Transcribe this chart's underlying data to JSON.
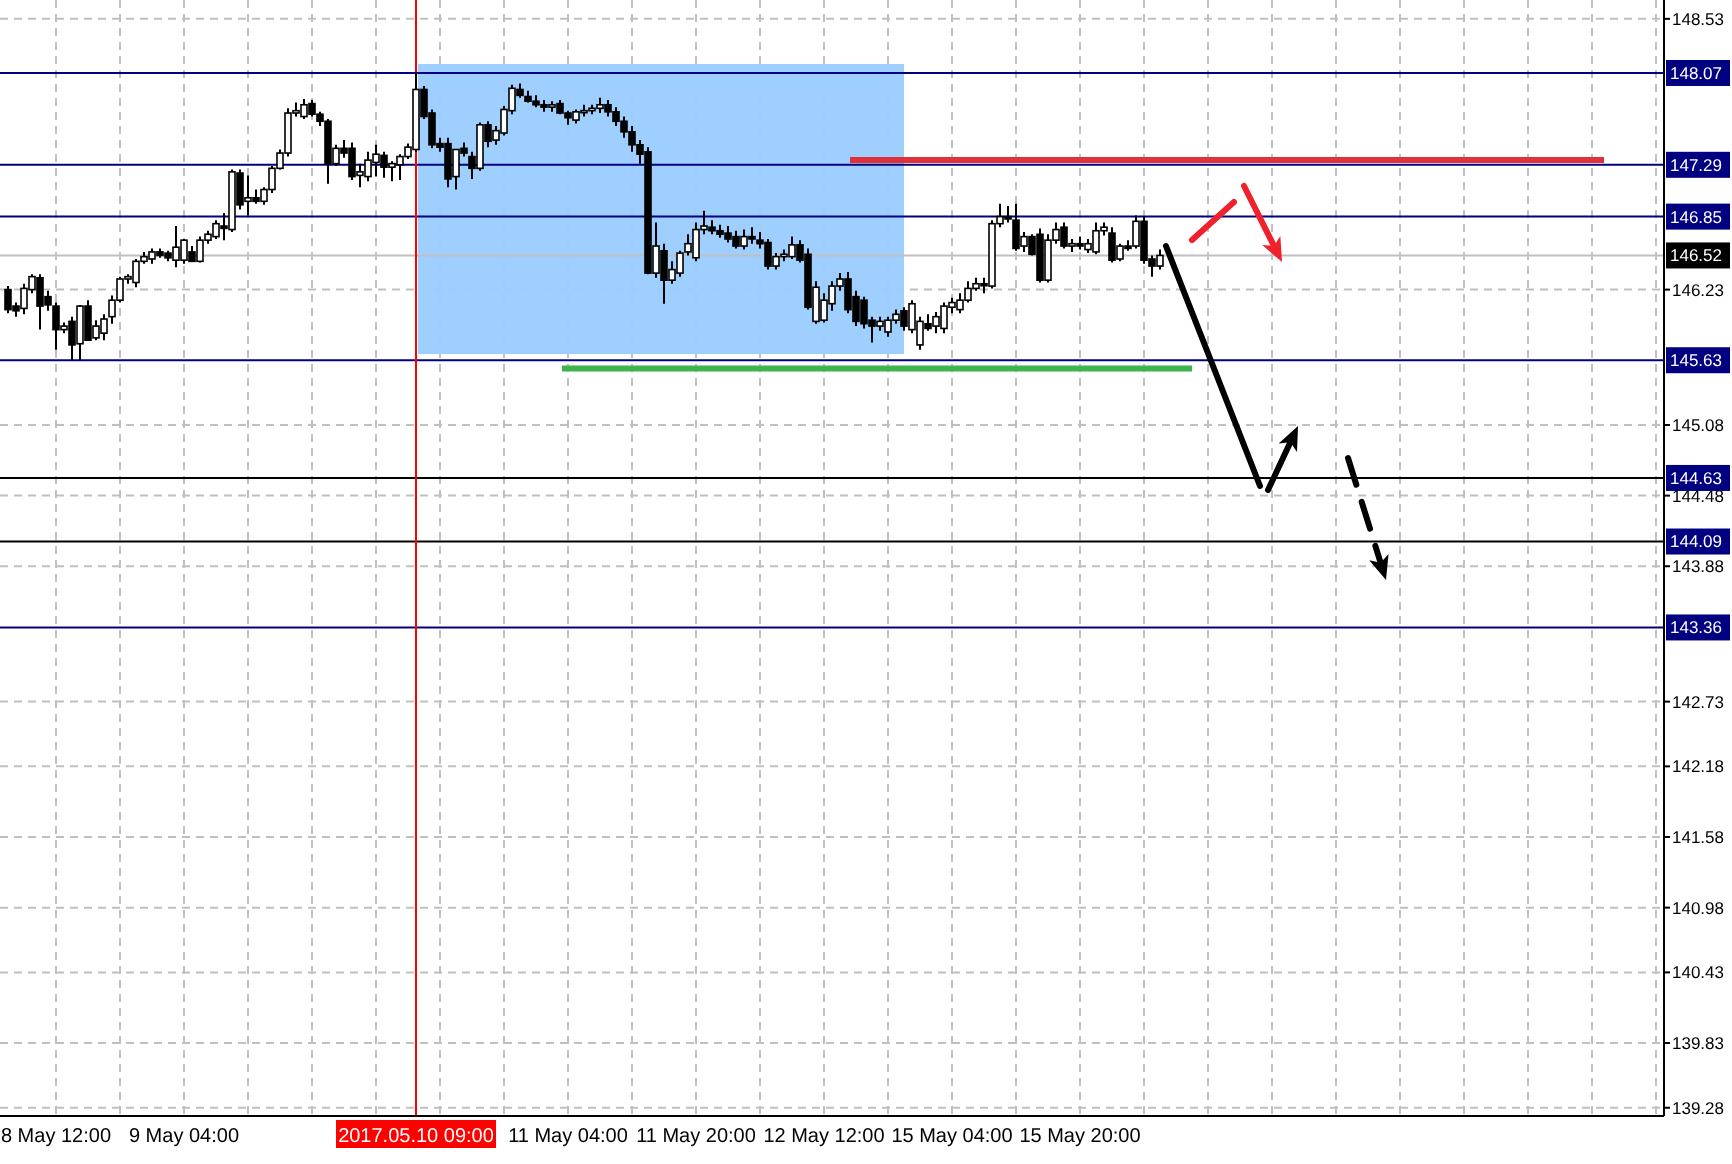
{
  "chart_data": {
    "type": "candlestick",
    "categories": [
      null,
      null,
      null,
      null,
      null,
      null,
      "8 May 12:00",
      null,
      null,
      null,
      null,
      null,
      null,
      null,
      null,
      null,
      null,
      null,
      null,
      null,
      null,
      null,
      "9 May 04:00",
      null,
      null,
      null,
      null,
      null,
      null,
      null,
      null,
      null,
      null,
      null,
      null,
      null,
      null,
      null,
      null,
      null,
      null,
      null,
      null,
      null,
      null,
      null,
      null,
      null,
      null,
      null,
      null,
      "2017.05.10 09:00",
      null,
      null,
      null,
      null,
      null,
      null,
      null,
      null,
      null,
      null,
      null,
      null,
      null,
      null,
      null,
      null,
      null,
      null,
      "11 May 04:00",
      null,
      null,
      null,
      null,
      null,
      null,
      null,
      null,
      null,
      null,
      null,
      null,
      null,
      null,
      null,
      "11 May 20:00",
      null,
      null,
      null,
      null,
      null,
      null,
      null,
      null,
      null,
      null,
      null,
      null,
      null,
      null,
      null,
      "12 May 12:00",
      null,
      null,
      null,
      null,
      null,
      null,
      null,
      null,
      null,
      null,
      null,
      null,
      null,
      null,
      null,
      "15 May 04:00",
      null,
      null,
      null,
      null,
      null,
      null,
      null,
      null,
      null,
      null,
      null,
      null,
      null,
      null,
      null,
      "15 May 20:00",
      null,
      null,
      null,
      null,
      null,
      null,
      null,
      null,
      null,
      null,
      null,
      null,
      null,
      null,
      null,
      null,
      null,
      null,
      null,
      null,
      null,
      null,
      null,
      null,
      null,
      null,
      null,
      null,
      null,
      null,
      null,
      null,
      null,
      null,
      null,
      null,
      null,
      null,
      null,
      null,
      null,
      null,
      null,
      null,
      null,
      null,
      null,
      null,
      null,
      null,
      null,
      null,
      null,
      null,
      null,
      null,
      null,
      null,
      null,
      null,
      null,
      null,
      null,
      null,
      null,
      null,
      null,
      null,
      null,
      null,
      null,
      null,
      null
    ],
    "ohlc": [
      [
        146.23,
        146.26,
        146.03,
        146.06
      ],
      [
        146.09,
        146.12,
        146.0,
        146.05
      ],
      [
        146.07,
        146.28,
        146.02,
        146.24
      ],
      [
        146.23,
        146.36,
        146.2,
        146.34
      ],
      [
        146.33,
        146.36,
        145.89,
        146.09
      ],
      [
        146.17,
        146.22,
        146.05,
        146.1
      ],
      [
        146.09,
        146.12,
        145.72,
        145.89
      ],
      [
        145.89,
        145.95,
        145.86,
        145.92
      ],
      [
        145.96,
        146.0,
        145.63,
        145.76
      ],
      [
        145.77,
        146.1,
        145.63,
        146.09
      ],
      [
        146.09,
        146.14,
        145.8,
        145.8
      ],
      [
        145.82,
        145.97,
        145.8,
        145.92
      ],
      [
        145.86,
        146.02,
        145.8,
        145.98
      ],
      [
        146.0,
        146.18,
        145.94,
        146.14
      ],
      [
        146.14,
        146.34,
        146.12,
        146.32
      ],
      [
        146.32,
        146.36,
        146.28,
        146.34
      ],
      [
        146.29,
        146.49,
        146.25,
        146.47
      ],
      [
        146.47,
        146.55,
        146.45,
        146.51
      ],
      [
        146.49,
        146.58,
        146.45,
        146.55
      ],
      [
        146.55,
        146.58,
        146.5,
        146.52
      ],
      [
        146.54,
        146.56,
        146.47,
        146.5
      ],
      [
        146.48,
        146.77,
        146.42,
        146.59
      ],
      [
        146.48,
        146.66,
        146.45,
        146.65
      ],
      [
        146.55,
        146.6,
        146.47,
        146.47
      ],
      [
        146.47,
        146.68,
        146.46,
        146.65
      ],
      [
        146.65,
        146.73,
        146.62,
        146.7
      ],
      [
        146.68,
        146.82,
        146.66,
        146.79
      ],
      [
        146.77,
        146.88,
        146.65,
        146.75
      ],
      [
        146.74,
        147.25,
        146.72,
        147.23
      ],
      [
        147.22,
        147.25,
        146.91,
        146.95
      ],
      [
        146.98,
        147.2,
        146.86,
        147.01
      ],
      [
        147.01,
        147.08,
        146.96,
        146.98
      ],
      [
        146.98,
        147.1,
        146.95,
        147.08
      ],
      [
        147.08,
        147.28,
        147.05,
        147.26
      ],
      [
        147.26,
        147.42,
        147.25,
        147.39
      ],
      [
        147.39,
        147.77,
        147.36,
        147.73
      ],
      [
        147.73,
        147.82,
        147.7,
        147.75
      ],
      [
        147.7,
        147.85,
        147.68,
        147.8
      ],
      [
        147.81,
        147.84,
        147.7,
        147.72
      ],
      [
        147.72,
        147.74,
        147.62,
        147.66
      ],
      [
        147.66,
        147.68,
        147.13,
        147.3
      ],
      [
        147.3,
        147.46,
        147.28,
        147.43
      ],
      [
        147.43,
        147.5,
        147.35,
        147.39
      ],
      [
        147.43,
        147.48,
        147.16,
        147.19
      ],
      [
        147.2,
        147.3,
        147.1,
        147.23
      ],
      [
        147.19,
        147.4,
        147.15,
        147.33
      ],
      [
        147.31,
        147.46,
        147.19,
        147.38
      ],
      [
        147.37,
        147.4,
        147.18,
        147.27
      ],
      [
        147.27,
        147.32,
        147.15,
        147.3
      ],
      [
        147.29,
        147.38,
        147.16,
        147.36
      ],
      [
        147.36,
        147.47,
        147.34,
        147.44
      ],
      [
        147.42,
        148.08,
        147.4,
        147.93
      ],
      [
        147.93,
        147.96,
        147.68,
        147.7
      ],
      [
        147.73,
        147.76,
        147.43,
        147.46
      ],
      [
        147.47,
        147.52,
        147.4,
        147.44
      ],
      [
        147.47,
        147.52,
        147.1,
        147.17
      ],
      [
        147.19,
        147.42,
        147.08,
        147.42
      ],
      [
        147.43,
        147.48,
        147.36,
        147.39
      ],
      [
        147.36,
        147.4,
        147.17,
        147.26
      ],
      [
        147.26,
        147.65,
        147.24,
        147.63
      ],
      [
        147.63,
        147.66,
        147.44,
        147.49
      ],
      [
        147.5,
        147.62,
        147.46,
        147.58
      ],
      [
        147.56,
        147.79,
        147.54,
        147.76
      ],
      [
        147.75,
        147.97,
        147.72,
        147.94
      ],
      [
        147.93,
        147.98,
        147.86,
        147.88
      ],
      [
        147.87,
        147.92,
        147.82,
        147.83
      ],
      [
        147.83,
        147.88,
        147.78,
        147.8
      ],
      [
        147.8,
        147.84,
        147.74,
        147.78
      ],
      [
        147.78,
        147.83,
        147.74,
        147.8
      ],
      [
        147.81,
        147.84,
        147.72,
        147.73
      ],
      [
        147.73,
        147.75,
        147.63,
        147.69
      ],
      [
        147.67,
        147.76,
        147.64,
        147.74
      ],
      [
        147.74,
        147.8,
        147.7,
        147.75
      ],
      [
        147.75,
        147.8,
        147.72,
        147.77
      ],
      [
        147.77,
        147.86,
        147.73,
        147.8
      ],
      [
        147.8,
        147.84,
        147.7,
        147.74
      ],
      [
        147.74,
        147.78,
        147.62,
        147.66
      ],
      [
        147.66,
        147.7,
        147.52,
        147.57
      ],
      [
        147.57,
        147.62,
        147.4,
        147.46
      ],
      [
        147.46,
        147.5,
        147.3,
        147.38
      ],
      [
        147.4,
        147.44,
        146.36,
        146.37
      ],
      [
        146.37,
        146.8,
        146.33,
        146.6
      ],
      [
        146.56,
        146.62,
        146.11,
        146.31
      ],
      [
        146.31,
        146.47,
        146.28,
        146.4
      ],
      [
        146.37,
        146.56,
        146.34,
        146.54
      ],
      [
        146.55,
        146.7,
        146.52,
        146.62
      ],
      [
        146.5,
        146.8,
        146.47,
        146.74
      ],
      [
        146.74,
        146.9,
        146.7,
        146.77
      ],
      [
        146.76,
        146.82,
        146.7,
        146.73
      ],
      [
        146.73,
        146.78,
        146.67,
        146.7
      ],
      [
        146.71,
        146.77,
        146.63,
        146.66
      ],
      [
        146.68,
        146.73,
        146.58,
        146.6
      ],
      [
        146.6,
        146.74,
        146.57,
        146.68
      ],
      [
        146.68,
        146.76,
        146.62,
        146.66
      ],
      [
        146.65,
        146.72,
        146.58,
        146.62
      ],
      [
        146.63,
        146.66,
        146.4,
        146.43
      ],
      [
        146.43,
        146.54,
        146.4,
        146.51
      ],
      [
        146.51,
        146.57,
        146.47,
        146.53
      ],
      [
        146.51,
        146.68,
        146.49,
        146.61
      ],
      [
        146.61,
        146.65,
        146.46,
        146.48
      ],
      [
        146.53,
        146.58,
        146.06,
        146.08
      ],
      [
        145.96,
        146.3,
        145.94,
        146.25
      ],
      [
        145.97,
        146.2,
        145.95,
        146.14
      ],
      [
        146.11,
        146.3,
        146.05,
        146.26
      ],
      [
        146.26,
        146.37,
        146.22,
        146.32
      ],
      [
        146.32,
        146.38,
        146.03,
        146.06
      ],
      [
        146.17,
        146.22,
        145.92,
        145.96
      ],
      [
        146.14,
        146.17,
        145.9,
        145.94
      ],
      [
        145.97,
        146.0,
        145.78,
        145.92
      ],
      [
        145.92,
        146.0,
        145.88,
        145.96
      ],
      [
        145.87,
        146.0,
        145.83,
        145.97
      ],
      [
        145.97,
        146.06,
        145.94,
        146.02
      ],
      [
        146.05,
        146.08,
        145.88,
        145.92
      ],
      [
        145.89,
        146.14,
        145.86,
        146.11
      ],
      [
        145.76,
        146.0,
        145.72,
        145.96
      ],
      [
        145.94,
        146.02,
        145.88,
        145.9
      ],
      [
        145.92,
        146.04,
        145.86,
        146.0
      ],
      [
        145.9,
        146.12,
        145.86,
        146.09
      ],
      [
        146.08,
        146.16,
        146.03,
        146.12
      ],
      [
        146.06,
        146.2,
        146.03,
        146.14
      ],
      [
        146.14,
        146.3,
        146.12,
        146.24
      ],
      [
        146.24,
        146.33,
        146.22,
        146.28
      ],
      [
        146.28,
        146.33,
        146.2,
        146.27
      ],
      [
        146.26,
        146.82,
        146.24,
        146.79
      ],
      [
        146.79,
        146.96,
        146.76,
        146.85
      ],
      [
        146.85,
        146.94,
        146.8,
        146.83
      ],
      [
        146.82,
        146.96,
        146.56,
        146.58
      ],
      [
        146.6,
        146.72,
        146.55,
        146.68
      ],
      [
        146.68,
        146.7,
        146.52,
        146.53
      ],
      [
        146.7,
        146.75,
        146.29,
        146.31
      ],
      [
        146.31,
        146.7,
        146.29,
        146.65
      ],
      [
        146.65,
        146.8,
        146.62,
        146.74
      ],
      [
        146.76,
        146.8,
        146.58,
        146.6
      ],
      [
        146.6,
        146.66,
        146.55,
        146.62
      ],
      [
        146.62,
        146.68,
        146.57,
        146.6
      ],
      [
        146.57,
        146.66,
        146.54,
        146.62
      ],
      [
        146.55,
        146.8,
        146.53,
        146.73
      ],
      [
        146.73,
        146.8,
        146.69,
        146.76
      ],
      [
        146.71,
        146.76,
        146.46,
        146.48
      ],
      [
        146.49,
        146.62,
        146.47,
        146.6
      ],
      [
        146.6,
        146.65,
        146.56,
        146.58
      ],
      [
        146.6,
        146.86,
        146.58,
        146.81
      ],
      [
        146.81,
        146.85,
        146.45,
        146.48
      ],
      [
        146.49,
        146.52,
        146.34,
        146.43
      ],
      [
        146.43,
        146.57,
        146.4,
        146.52
      ],
      null,
      null,
      null,
      null,
      null,
      null,
      null,
      null,
      null,
      null,
      null,
      null,
      null,
      null,
      null,
      null,
      null,
      null,
      null,
      null,
      null,
      null,
      null,
      null,
      null,
      null,
      null,
      null,
      null,
      null,
      null,
      null,
      null,
      null,
      null,
      null,
      null,
      null,
      null,
      null,
      null,
      null,
      null,
      null,
      null,
      null,
      null,
      null,
      null,
      null,
      null,
      null,
      null,
      null,
      null,
      null,
      null,
      null,
      null,
      null,
      null,
      null,
      null
    ],
    "ylim": [
      139.21,
      148.69
    ],
    "yticks": [
      148.53,
      146.23,
      145.08,
      144.48,
      143.88,
      142.73,
      142.18,
      141.58,
      140.98,
      140.43,
      139.83,
      139.28
    ],
    "grid": true,
    "ref_lines": [
      {
        "axis": "y",
        "value": 148.07,
        "label": "148.07",
        "color": "#000080"
      },
      {
        "axis": "y",
        "value": 147.29,
        "label": "147.29",
        "color": "#000080"
      },
      {
        "axis": "y",
        "value": 146.85,
        "label": "146.85",
        "color": "#000080"
      },
      {
        "axis": "y",
        "value": 146.52,
        "label": "146.52",
        "color": "#c0c0c0"
      },
      {
        "axis": "y",
        "value": 145.63,
        "label": "145.63",
        "color": "#000080"
      },
      {
        "axis": "y",
        "value": 144.63,
        "label": "144.63",
        "color": "#000000"
      },
      {
        "axis": "y",
        "value": 144.09,
        "label": "144.09",
        "color": "#000000"
      },
      {
        "axis": "y",
        "value": 143.36,
        "label": "143.36",
        "color": "#000080"
      },
      {
        "axis": "y",
        "value": 147.33,
        "color": "#e0303a"
      },
      {
        "axis": "y",
        "value": 145.56,
        "color": "#3cb44b"
      },
      {
        "axis": "x",
        "value": "2017.05.10 09:00",
        "color": "#ff0000"
      }
    ]
  }
}
